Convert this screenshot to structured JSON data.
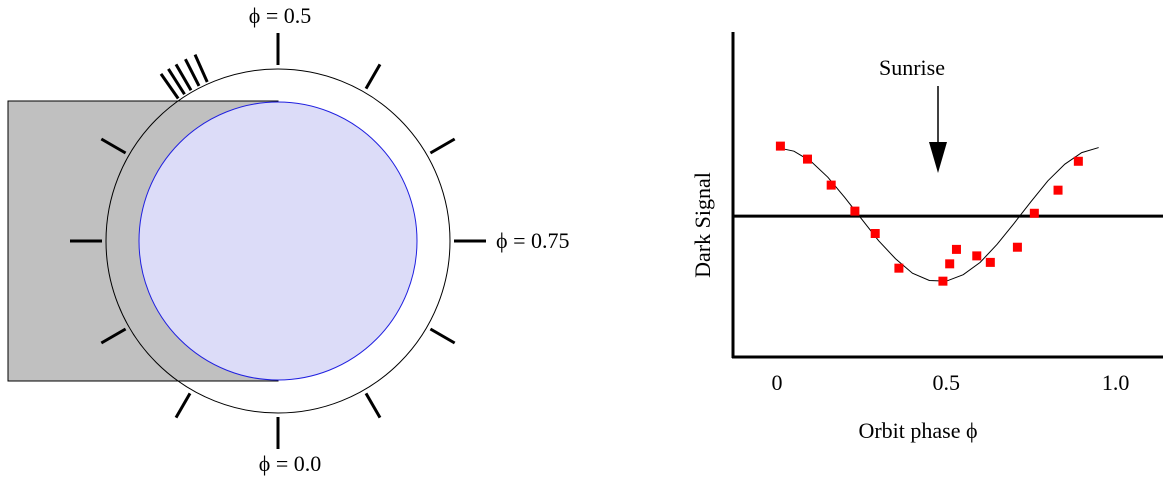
{
  "diagram": {
    "labels": [
      "ϕ = 0.5",
      "ϕ = 0.75",
      "ϕ = 0.0"
    ]
  },
  "chart_data": {
    "type": "scatter",
    "annotation": "Sunrise",
    "x_label": "Orbit phase   ϕ",
    "y_label": "Dark  Signal",
    "xlim": [
      -0.13,
      1.14
    ],
    "ylim": [
      -1.95,
      2.55
    ],
    "xticks": [
      0,
      0.5,
      {
        "value": 1,
        "label": "1.0"
      }
    ],
    "hline": 0,
    "series": [
      {
        "type": "scatter",
        "color": "#ff0000",
        "x": [
          0.01,
          0.09,
          0.16,
          0.23,
          0.29,
          0.36,
          0.49,
          0.51,
          0.53,
          0.59,
          0.63,
          0.71,
          0.76,
          0.83,
          0.89
        ],
        "values": [
          0.97,
          0.79,
          0.43,
          0.07,
          -0.24,
          -0.72,
          -0.9,
          -0.66,
          -0.46,
          -0.55,
          -0.64,
          -0.43,
          0.04,
          0.36,
          0.76
        ]
      },
      {
        "type": "line",
        "color": "#000000",
        "x": [
          0,
          0.05,
          0.1,
          0.15,
          0.2,
          0.25,
          0.3,
          0.35,
          0.4,
          0.45,
          0.5,
          0.55,
          0.6,
          0.65,
          0.7,
          0.75,
          0.8,
          0.85,
          0.9,
          0.95
        ],
        "values": [
          0.95,
          0.9,
          0.76,
          0.54,
          0.26,
          -0.04,
          -0.34,
          -0.59,
          -0.79,
          -0.89,
          -0.9,
          -0.81,
          -0.64,
          -0.39,
          -0.1,
          0.2,
          0.49,
          0.72,
          0.88,
          0.95
        ]
      }
    ]
  }
}
